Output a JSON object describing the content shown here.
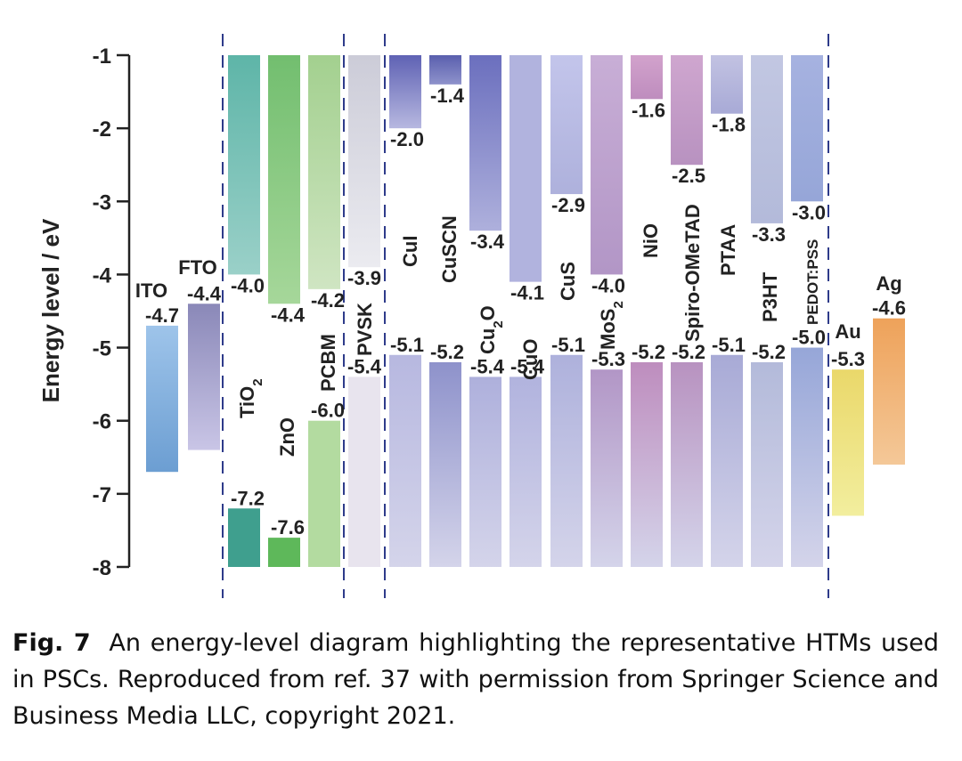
{
  "chart_data": {
    "type": "energy-level-diagram",
    "ylabel": "Energy level / eV",
    "ylim": [
      -8,
      -1
    ],
    "yticks": [
      "-1",
      "-2",
      "-3",
      "-4",
      "-5",
      "-6",
      "-7",
      "-8"
    ],
    "electrodes_left": [
      {
        "name": "ITO",
        "value": -4.7,
        "label": "-4.7",
        "c1": "#9ec4ea",
        "c2": "#6c9ed2"
      },
      {
        "name": "FTO",
        "value": -4.4,
        "label": "-4.4",
        "c1": "#8a88b8",
        "c2": "#c9c5e6"
      }
    ],
    "etms": [
      {
        "name": "TiO",
        "sub": "2",
        "cb": -4.0,
        "vb": -7.2,
        "cb_label": "-4.0",
        "vb_label": "-7.2",
        "c1": "#5eb5a8",
        "c2": "#9ad0c8",
        "vc": "#3f9f8e"
      },
      {
        "name": "ZnO",
        "sub": "",
        "cb": -4.4,
        "vb": -7.6,
        "cb_label": "-4.4",
        "vb_label": "-7.6",
        "c1": "#72be6f",
        "c2": "#a6d79a",
        "vc": "#5eb85a"
      },
      {
        "name": "PCBM",
        "sub": "",
        "cb": -4.2,
        "vb": -6.0,
        "cb_label": "-4.2",
        "vb_label": "-6.0",
        "c1": "#a3d08f",
        "c2": "#cfe5c2",
        "vc": "#b3dba0"
      }
    ],
    "perovskite": {
      "name": "PVSK",
      "cb": -3.9,
      "vb": -5.4,
      "cb_label": "-3.9",
      "vb_label": "-5.4",
      "c1": "#ccccd8",
      "c2": "#ebebf0",
      "vc": "#e8e4ee"
    },
    "htms": [
      {
        "name": "CuI",
        "sub": "",
        "lumo": -2.0,
        "homo": -5.1,
        "lumo_label": "-2.0",
        "homo_label": "-5.1",
        "top": "#5f62b4",
        "bottom": "#b7b8e0"
      },
      {
        "name": "CuSCN",
        "sub": "",
        "lumo": -1.4,
        "homo": -5.2,
        "lumo_label": "-1.4",
        "homo_label": "-5.2",
        "top": "#5a5fae",
        "bottom": "#8e92cb"
      },
      {
        "name": "Cu",
        "sub": "2",
        "suffix": "O",
        "lumo": -3.4,
        "homo": -5.4,
        "lumo_label": "-3.4",
        "homo_label": "-5.4",
        "top": "#6b6fbe",
        "bottom": "#aeb0dc"
      },
      {
        "name": "CuO",
        "sub": "",
        "lumo": -4.1,
        "homo": -5.4,
        "lumo_label": "-4.1",
        "homo_label": "-5.4",
        "top": "#b1b3de",
        "bottom": "#b1b3de"
      },
      {
        "name": "CuS",
        "sub": "",
        "lumo": -2.9,
        "homo": -5.1,
        "lumo_label": "-2.9",
        "homo_label": "-5.1",
        "top": "#c3c5eb",
        "bottom": "#aeb1dc"
      },
      {
        "name": "MoS",
        "sub": "2",
        "lumo": -4.0,
        "homo": -5.3,
        "lumo_label": "-4.0",
        "homo_label": "-5.3",
        "top": "#c8aed6",
        "bottom": "#b296c6"
      },
      {
        "name": "NiO",
        "sub": "",
        "lumo": -1.6,
        "homo": -5.2,
        "lumo_label": "-1.6",
        "homo_label": "-5.2",
        "top": "#d2a2cc",
        "bottom": "#be8dbe"
      },
      {
        "name": "Spiro-OMeTAD",
        "sub": "",
        "lumo": -2.5,
        "homo": -5.2,
        "lumo_label": "-2.5",
        "homo_label": "-5.2",
        "top": "#cfa6cf",
        "bottom": "#b892c0"
      },
      {
        "name": "PTAA",
        "sub": "",
        "lumo": -1.8,
        "homo": -5.1,
        "lumo_label": "-1.8",
        "homo_label": "-5.1",
        "top": "#c2c2e2",
        "bottom": "#a8aad6"
      },
      {
        "name": "P3HT",
        "sub": "",
        "lumo": -3.3,
        "homo": -5.2,
        "lumo_label": "-3.3",
        "homo_label": "-5.2",
        "top": "#c2c7e2",
        "bottom": "#b3bada"
      },
      {
        "name": "PEDOT:PSS",
        "sub": "",
        "lumo": -3.0,
        "homo": -5.0,
        "lumo_label": "-3.0",
        "homo_label": "-5.0",
        "top": "#a6b2e0",
        "bottom": "#96a6d8"
      }
    ],
    "electrodes_right": [
      {
        "name": "Au",
        "value": -5.3,
        "label": "-5.3",
        "bottom": -7.3,
        "c1": "#ead86a",
        "c2": "#f2ee9e"
      },
      {
        "name": "Ag",
        "value": -4.6,
        "label": "-4.6",
        "bottom": -6.6,
        "c1": "#eea25a",
        "c2": "#f4c898"
      }
    ]
  },
  "caption": {
    "label": "Fig. 7",
    "text": "An energy-level diagram highlighting the representative HTMs used in PSCs. Reproduced from ref. 37 with permission from Springer Science and Business Media LLC, copyright 2021."
  }
}
